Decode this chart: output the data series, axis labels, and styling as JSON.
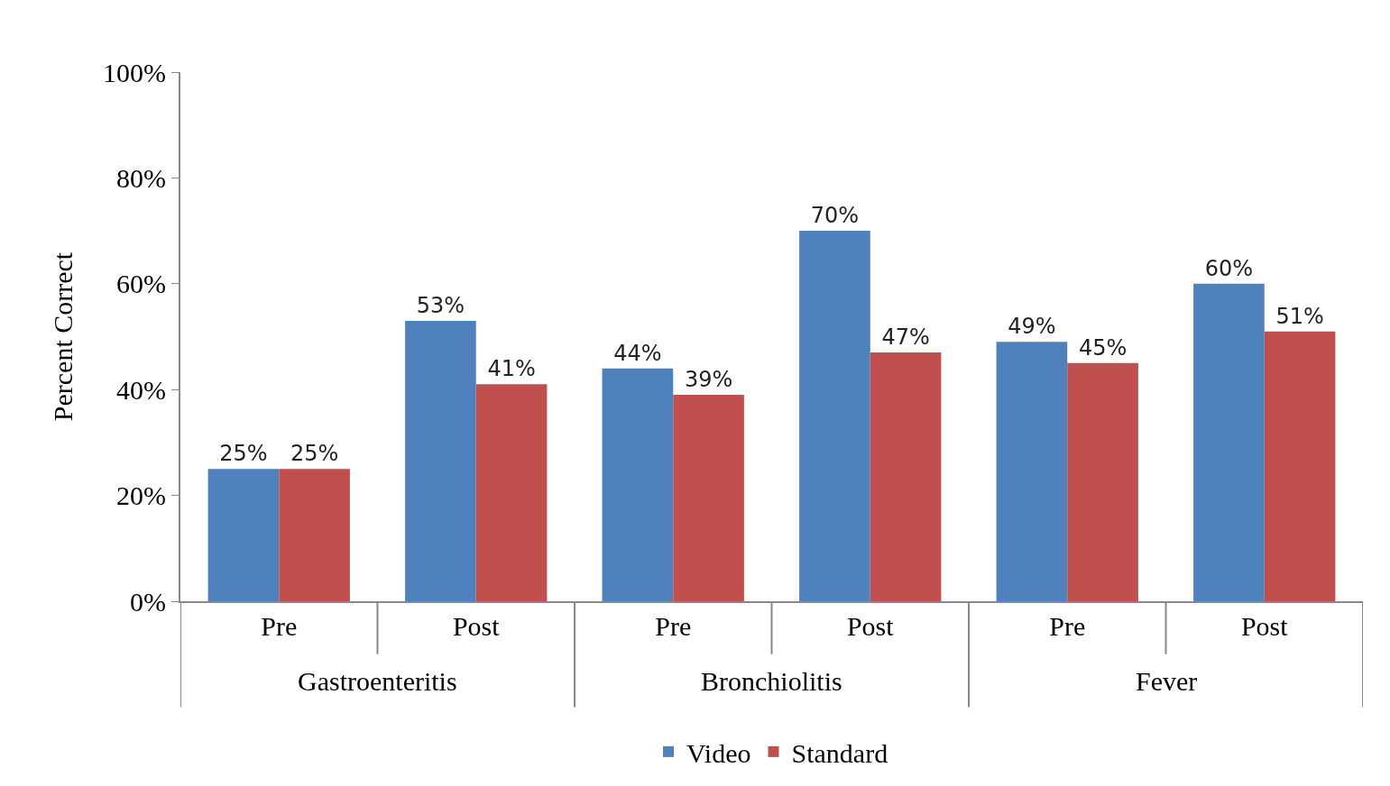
{
  "chart_data": {
    "type": "bar",
    "ylabel": "Percent Correct",
    "categories": [
      "Pre",
      "Post",
      "Pre",
      "Post",
      "Pre",
      "Post"
    ],
    "annotations": [
      "Gastroenteritis",
      "Bronchiolitis",
      "Fever"
    ],
    "series": [
      {
        "name": "Video",
        "color": "#4f81bd",
        "values": [
          25,
          53,
          44,
          70,
          49,
          60
        ],
        "value_labels": [
          "25%",
          "53%",
          "44%",
          "70%",
          "49%",
          "60%"
        ]
      },
      {
        "name": "Standard",
        "color": "#c0504d",
        "values": [
          25,
          41,
          39,
          47,
          45,
          51
        ],
        "value_labels": [
          "25%",
          "41%",
          "39%",
          "47%",
          "45%",
          "51%"
        ]
      }
    ],
    "ylim": [
      0,
      100
    ],
    "yticks": [
      {
        "value": 0,
        "label": "0%"
      },
      {
        "value": 20,
        "label": "20%"
      },
      {
        "value": 40,
        "label": "40%"
      },
      {
        "value": 60,
        "label": "60%"
      },
      {
        "value": 80,
        "label": "80%"
      },
      {
        "value": 100,
        "label": "100%"
      }
    ],
    "grid": false,
    "legend": "bottom"
  }
}
